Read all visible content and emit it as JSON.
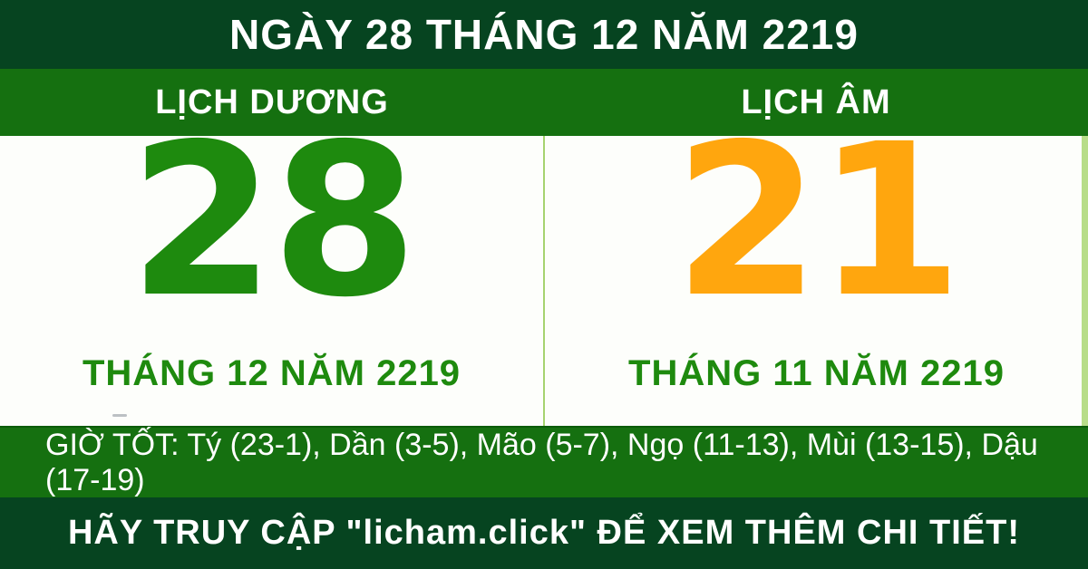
{
  "header": {
    "title": "NGÀY 28 THÁNG 12 NĂM 2219"
  },
  "solar": {
    "label": "LỊCH DƯƠNG",
    "day": "28",
    "month_year": "THÁNG 12 NĂM 2219"
  },
  "lunar": {
    "label": "LỊCH ÂM",
    "day": "21",
    "month_year": "THÁNG 11 NĂM 2219"
  },
  "good_hours": {
    "text": "GIỜ TỐT: Tý (23-1), Dần (3-5), Mão (5-7), Ngọ (11-13), Mùi (13-15), Dậu (17-19)"
  },
  "footer": {
    "text": "HÃY TRUY CẬP \"licham.click\" ĐỂ XEM THÊM CHI TIẾT!"
  },
  "colors": {
    "dark_green": "#064420",
    "green": "#157010",
    "day_green": "#1e8a0e",
    "day_orange": "#ffa60e",
    "divider_light_green": "#a6d36f"
  }
}
